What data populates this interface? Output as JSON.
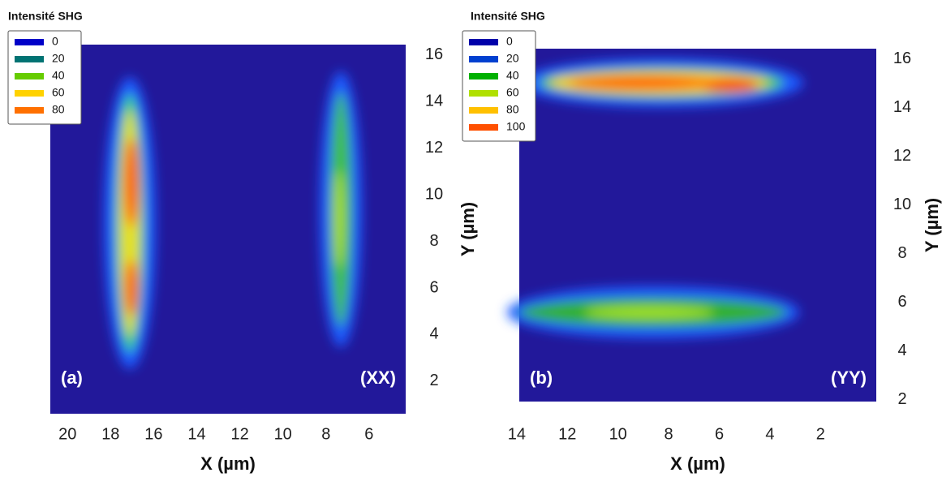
{
  "chart_data": [
    {
      "type": "heatmap",
      "legend_title": "Intensité SHG",
      "x_label": "X (µm)",
      "y_label": "Y (µm)",
      "annotations": [
        "(a)",
        "(XX)"
      ],
      "legend": [
        {
          "name": "0",
          "color": "#0000c8"
        },
        {
          "name": "20",
          "color": "#007373"
        },
        {
          "name": "40",
          "color": "#66cc00"
        },
        {
          "name": "60",
          "color": "#ffd200"
        },
        {
          "name": "80",
          "color": "#ff7000"
        }
      ],
      "xlim": [
        20.8,
        4.3
      ],
      "xticks": [
        20,
        18,
        16,
        14,
        12,
        10,
        8,
        6
      ],
      "ylim": [
        0.6,
        16.45
      ],
      "yticks": [
        2,
        4,
        6,
        8,
        10,
        12,
        14,
        16
      ]
    },
    {
      "type": "heatmap",
      "legend_title": "Intensité SHG",
      "x_label": "X (µm)",
      "y_label": "Y (µm)",
      "annotations": [
        "(b)",
        "(YY)"
      ],
      "legend": [
        {
          "name": "0",
          "color": "#0000aa"
        },
        {
          "name": "20",
          "color": "#0040d0"
        },
        {
          "name": "40",
          "color": "#00b000"
        },
        {
          "name": "60",
          "color": "#b0e000"
        },
        {
          "name": "80",
          "color": "#ffc000"
        },
        {
          "name": "100",
          "color": "#ff5000"
        }
      ],
      "xlim": [
        13.9,
        -0.2
      ],
      "xticks": [
        14,
        12,
        10,
        8,
        6,
        4,
        2
      ],
      "ylim": [
        1.93,
        16.43
      ],
      "yticks": [
        2,
        4,
        6,
        8,
        10,
        12,
        14,
        16
      ]
    }
  ]
}
